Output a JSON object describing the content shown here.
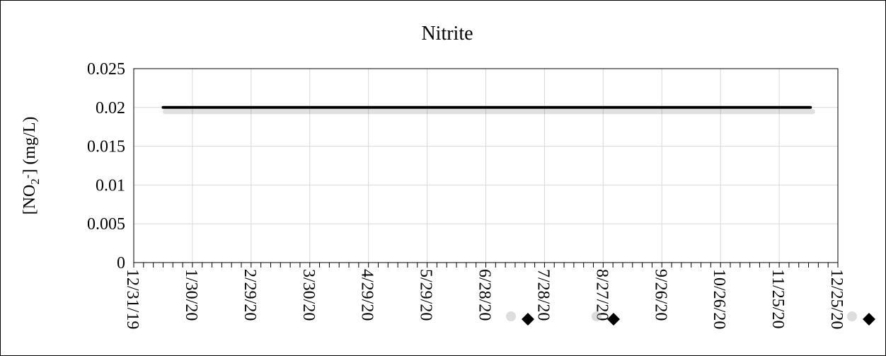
{
  "chart_data": {
    "type": "line",
    "title": "Nitrite",
    "ylabel": {
      "prefix": "[NO",
      "sub": "2",
      "sup": "-",
      "suffix": "] (mg/L)"
    },
    "xlabel": "",
    "x_tick_labels": [
      "12/31/19",
      "1/30/20",
      "2/29/20",
      "3/30/20",
      "4/29/20",
      "5/29/20",
      "6/28/20",
      "7/28/20",
      "8/27/20",
      "9/26/20",
      "10/26/20",
      "11/25/20",
      "12/25/20"
    ],
    "y_tick_labels": [
      "0",
      "0.005",
      "0.01",
      "0.015",
      "0.02",
      "0.025"
    ],
    "xlim": [
      "2019-12-31",
      "2020-12-25"
    ],
    "ylim": [
      0,
      0.025
    ],
    "grid": true,
    "series": [
      {
        "color": "#000000",
        "marker": "none",
        "points": [
          {
            "x": "2020-01-15",
            "y": 0.02
          },
          {
            "x": "2020-12-11",
            "y": 0.02
          }
        ]
      }
    ],
    "legend_markers": [
      {
        "marker": "diamond",
        "color": "#000000"
      },
      {
        "marker": "diamond",
        "color": "#000000"
      },
      {
        "marker": "diamond",
        "color": "#000000"
      }
    ]
  }
}
